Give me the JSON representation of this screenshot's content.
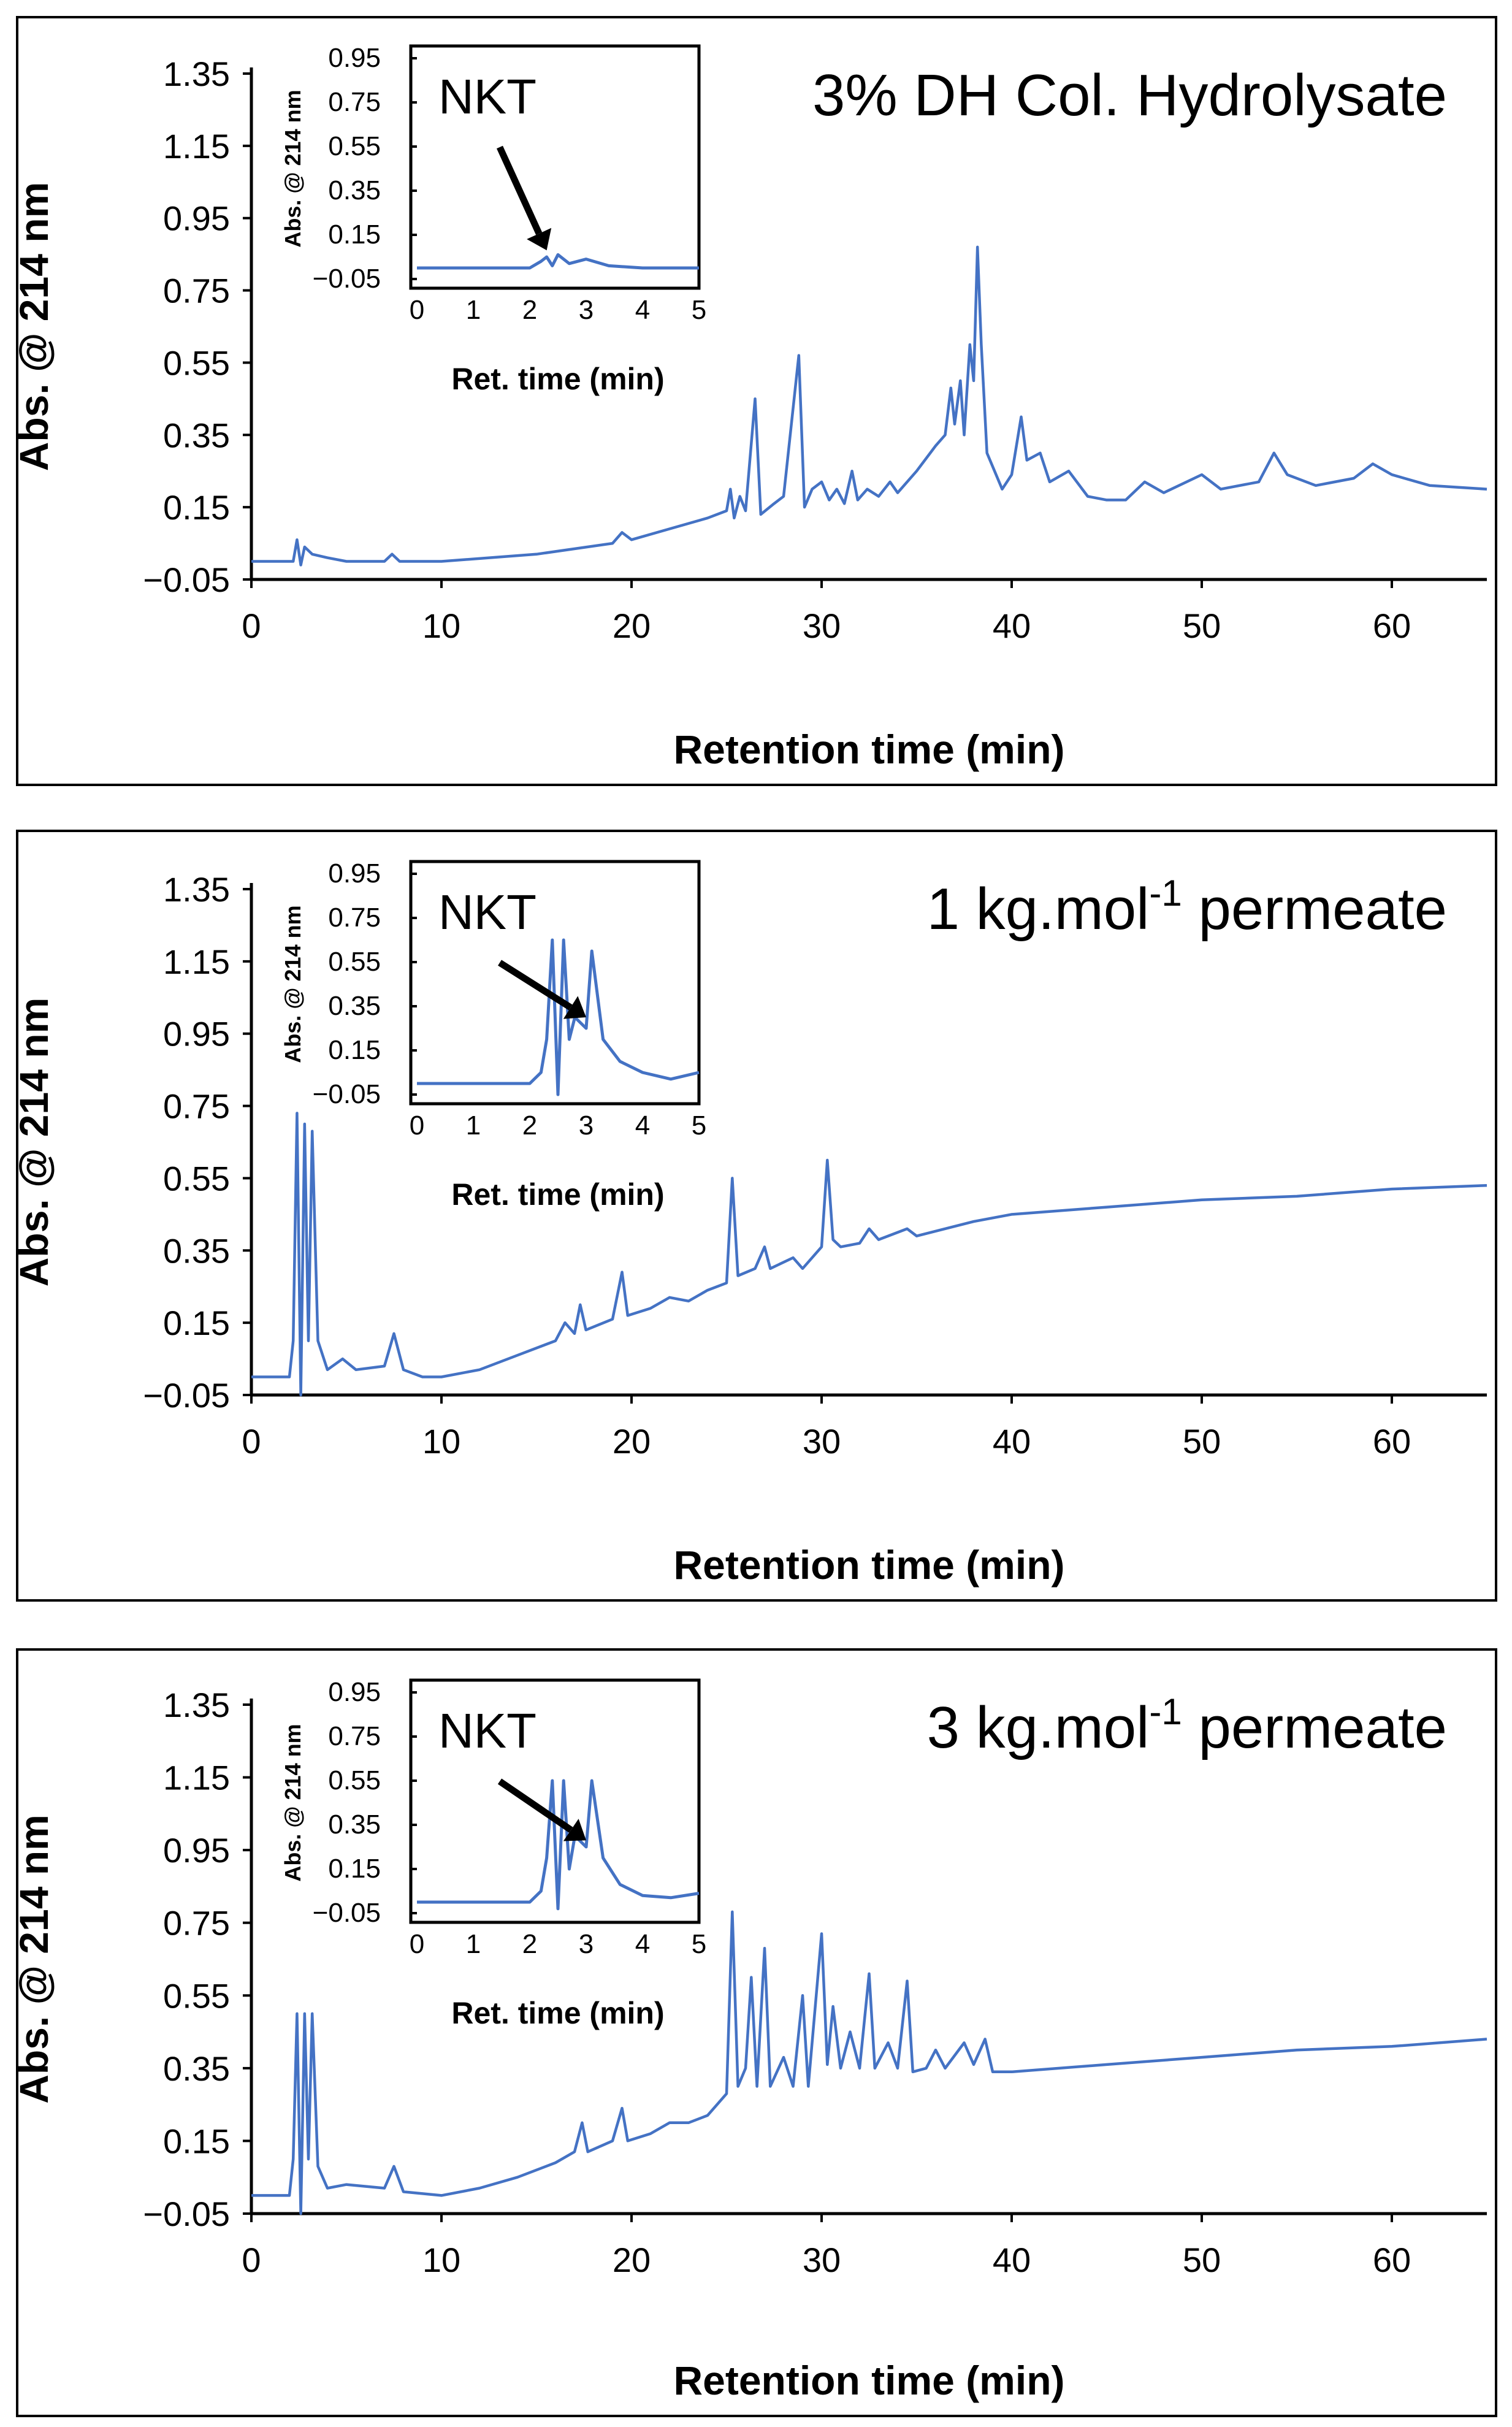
{
  "chart_data": [
    {
      "type": "line",
      "title": "3% DH Col. Hydrolysate",
      "xlabel": "Retention time (min)",
      "ylabel": "Abs. @ 214 nm",
      "xlim": [
        0,
        65
      ],
      "ylim": [
        -0.05,
        1.35
      ],
      "xticks": [
        "0",
        "10",
        "20",
        "30",
        "40",
        "50",
        "60"
      ],
      "yticks": [
        "-0.05",
        "0.15",
        "0.35",
        "0.55",
        "0.75",
        "0.95",
        "1.15",
        "1.35"
      ],
      "grid": false,
      "series": [
        {
          "values": [
            [
              0,
              0.0
            ],
            [
              2.2,
              0.0
            ],
            [
              2.4,
              0.06
            ],
            [
              2.6,
              -0.01
            ],
            [
              2.8,
              0.04
            ],
            [
              3.2,
              0.02
            ],
            [
              4,
              0.01
            ],
            [
              5,
              0.0
            ],
            [
              7,
              0.0
            ],
            [
              7.4,
              0.02
            ],
            [
              7.8,
              0.0
            ],
            [
              10,
              0.0
            ],
            [
              15,
              0.02
            ],
            [
              19,
              0.05
            ],
            [
              19.5,
              0.08
            ],
            [
              20,
              0.06
            ],
            [
              22,
              0.09
            ],
            [
              24,
              0.12
            ],
            [
              25,
              0.14
            ],
            [
              25.2,
              0.2
            ],
            [
              25.4,
              0.12
            ],
            [
              25.7,
              0.18
            ],
            [
              26,
              0.14
            ],
            [
              26.5,
              0.45
            ],
            [
              26.8,
              0.13
            ],
            [
              27.5,
              0.16
            ],
            [
              28,
              0.18
            ],
            [
              28.8,
              0.57
            ],
            [
              29.1,
              0.15
            ],
            [
              29.5,
              0.2
            ],
            [
              30,
              0.22
            ],
            [
              30.4,
              0.17
            ],
            [
              30.8,
              0.2
            ],
            [
              31.2,
              0.16
            ],
            [
              31.6,
              0.25
            ],
            [
              31.9,
              0.17
            ],
            [
              32.4,
              0.2
            ],
            [
              33,
              0.18
            ],
            [
              33.6,
              0.22
            ],
            [
              34,
              0.19
            ],
            [
              35,
              0.25
            ],
            [
              36,
              0.32
            ],
            [
              36.5,
              0.35
            ],
            [
              36.8,
              0.48
            ],
            [
              37,
              0.38
            ],
            [
              37.3,
              0.5
            ],
            [
              37.5,
              0.35
            ],
            [
              37.8,
              0.6
            ],
            [
              38,
              0.5
            ],
            [
              38.2,
              0.87
            ],
            [
              38.4,
              0.6
            ],
            [
              38.7,
              0.3
            ],
            [
              39.5,
              0.2
            ],
            [
              40,
              0.24
            ],
            [
              40.5,
              0.4
            ],
            [
              40.8,
              0.28
            ],
            [
              41.5,
              0.3
            ],
            [
              42,
              0.22
            ],
            [
              43,
              0.25
            ],
            [
              44,
              0.18
            ],
            [
              45,
              0.17
            ],
            [
              46,
              0.17
            ],
            [
              47,
              0.22
            ],
            [
              48,
              0.19
            ],
            [
              50,
              0.24
            ],
            [
              51,
              0.2
            ],
            [
              53,
              0.22
            ],
            [
              53.8,
              0.3
            ],
            [
              54.5,
              0.24
            ],
            [
              56,
              0.21
            ],
            [
              58,
              0.23
            ],
            [
              59,
              0.27
            ],
            [
              60,
              0.24
            ],
            [
              62,
              0.21
            ],
            [
              65,
              0.2
            ]
          ]
        }
      ],
      "inset": {
        "xlabel": "Ret. time (min)",
        "ylabel": "Abs. @ 214 nm",
        "xlim": [
          0,
          5
        ],
        "ylim": [
          -0.05,
          0.95
        ],
        "xticks": [
          "0",
          "1",
          "2",
          "3",
          "4",
          "5"
        ],
        "yticks": [
          "-0.05",
          "0.15",
          "0.35",
          "0.55",
          "0.75",
          "0.95"
        ],
        "annotation": "NKT",
        "arrow_to": [
          2.3,
          0.08
        ],
        "values": [
          [
            0,
            0.0
          ],
          [
            1.5,
            0.0
          ],
          [
            2.0,
            0.0
          ],
          [
            2.2,
            0.03
          ],
          [
            2.3,
            0.05
          ],
          [
            2.4,
            0.01
          ],
          [
            2.5,
            0.06
          ],
          [
            2.7,
            0.02
          ],
          [
            3.0,
            0.04
          ],
          [
            3.4,
            0.01
          ],
          [
            4,
            0.0
          ],
          [
            5,
            0.0
          ]
        ]
      }
    },
    {
      "type": "line",
      "title_parts": [
        "1 kg.mol",
        "-1",
        " permeate"
      ],
      "xlabel": "Retention time (min)",
      "ylabel": "Abs. @ 214 nm",
      "xlim": [
        0,
        65
      ],
      "ylim": [
        -0.05,
        1.35
      ],
      "xticks": [
        "0",
        "10",
        "20",
        "30",
        "40",
        "50",
        "60"
      ],
      "yticks": [
        "-0.05",
        "0.15",
        "0.35",
        "0.55",
        "0.75",
        "0.95",
        "1.15",
        "1.35"
      ],
      "grid": false,
      "series": [
        {
          "values": [
            [
              0,
              0.0
            ],
            [
              2.0,
              0.0
            ],
            [
              2.2,
              0.1
            ],
            [
              2.4,
              0.73
            ],
            [
              2.6,
              -0.05
            ],
            [
              2.8,
              0.7
            ],
            [
              3.0,
              0.1
            ],
            [
              3.2,
              0.68
            ],
            [
              3.5,
              0.1
            ],
            [
              4,
              0.02
            ],
            [
              4.8,
              0.05
            ],
            [
              5.5,
              0.02
            ],
            [
              7,
              0.03
            ],
            [
              7.5,
              0.12
            ],
            [
              8,
              0.02
            ],
            [
              9,
              0.0
            ],
            [
              10,
              0.0
            ],
            [
              12,
              0.02
            ],
            [
              14,
              0.06
            ],
            [
              16,
              0.1
            ],
            [
              16.5,
              0.15
            ],
            [
              17,
              0.12
            ],
            [
              17.3,
              0.2
            ],
            [
              17.6,
              0.13
            ],
            [
              19,
              0.16
            ],
            [
              19.5,
              0.29
            ],
            [
              19.8,
              0.17
            ],
            [
              21,
              0.19
            ],
            [
              22,
              0.22
            ],
            [
              23,
              0.21
            ],
            [
              24,
              0.24
            ],
            [
              25,
              0.26
            ],
            [
              25.3,
              0.55
            ],
            [
              25.6,
              0.28
            ],
            [
              26.5,
              0.3
            ],
            [
              27,
              0.36
            ],
            [
              27.3,
              0.3
            ],
            [
              28.5,
              0.33
            ],
            [
              29,
              0.3
            ],
            [
              30,
              0.36
            ],
            [
              30.3,
              0.6
            ],
            [
              30.6,
              0.38
            ],
            [
              31,
              0.36
            ],
            [
              32,
              0.37
            ],
            [
              32.5,
              0.41
            ],
            [
              33,
              0.38
            ],
            [
              34.5,
              0.41
            ],
            [
              35,
              0.39
            ],
            [
              38,
              0.43
            ],
            [
              40,
              0.45
            ],
            [
              45,
              0.47
            ],
            [
              50,
              0.49
            ],
            [
              55,
              0.5
            ],
            [
              60,
              0.52
            ],
            [
              65,
              0.53
            ]
          ]
        }
      ],
      "inset": {
        "xlabel": "Ret. time (min)",
        "ylabel": "Abs. @ 214 nm",
        "xlim": [
          0,
          5
        ],
        "ylim": [
          -0.05,
          0.95
        ],
        "xticks": [
          "0",
          "1",
          "2",
          "3",
          "4",
          "5"
        ],
        "yticks": [
          "-0.05",
          "0.15",
          "0.35",
          "0.55",
          "0.75",
          "0.95"
        ],
        "annotation": "NKT",
        "arrow_to": [
          3.0,
          0.3
        ],
        "values": [
          [
            0,
            0.0
          ],
          [
            1.5,
            0.0
          ],
          [
            2.0,
            0.0
          ],
          [
            2.2,
            0.05
          ],
          [
            2.3,
            0.2
          ],
          [
            2.4,
            0.65
          ],
          [
            2.5,
            -0.05
          ],
          [
            2.6,
            0.65
          ],
          [
            2.7,
            0.2
          ],
          [
            2.8,
            0.3
          ],
          [
            3.0,
            0.25
          ],
          [
            3.1,
            0.6
          ],
          [
            3.3,
            0.2
          ],
          [
            3.6,
            0.1
          ],
          [
            4,
            0.05
          ],
          [
            4.5,
            0.02
          ],
          [
            5,
            0.05
          ]
        ]
      }
    },
    {
      "type": "line",
      "title_parts": [
        "3 kg.mol",
        "-1",
        " permeate"
      ],
      "xlabel": "Retention time (min)",
      "ylabel": "Abs. @ 214 nm",
      "xlim": [
        0,
        65
      ],
      "ylim": [
        -0.05,
        1.35
      ],
      "xticks": [
        "0",
        "10",
        "20",
        "30",
        "40",
        "50",
        "60"
      ],
      "yticks": [
        "-0.05",
        "0.15",
        "0.35",
        "0.55",
        "0.75",
        "0.95",
        "1.15",
        "1.35"
      ],
      "grid": false,
      "series": [
        {
          "values": [
            [
              0,
              0.0
            ],
            [
              2.0,
              0.0
            ],
            [
              2.2,
              0.1
            ],
            [
              2.4,
              0.5
            ],
            [
              2.6,
              -0.05
            ],
            [
              2.8,
              0.5
            ],
            [
              3.0,
              0.1
            ],
            [
              3.2,
              0.5
            ],
            [
              3.5,
              0.08
            ],
            [
              4,
              0.02
            ],
            [
              5,
              0.03
            ],
            [
              7,
              0.02
            ],
            [
              7.5,
              0.08
            ],
            [
              8,
              0.01
            ],
            [
              10,
              0.0
            ],
            [
              12,
              0.02
            ],
            [
              14,
              0.05
            ],
            [
              16,
              0.09
            ],
            [
              17,
              0.12
            ],
            [
              17.4,
              0.2
            ],
            [
              17.7,
              0.12
            ],
            [
              19,
              0.15
            ],
            [
              19.5,
              0.24
            ],
            [
              19.8,
              0.15
            ],
            [
              21,
              0.17
            ],
            [
              22,
              0.2
            ],
            [
              23,
              0.2
            ],
            [
              24,
              0.22
            ],
            [
              25,
              0.28
            ],
            [
              25.3,
              0.78
            ],
            [
              25.6,
              0.3
            ],
            [
              26,
              0.35
            ],
            [
              26.3,
              0.6
            ],
            [
              26.6,
              0.3
            ],
            [
              27,
              0.68
            ],
            [
              27.3,
              0.3
            ],
            [
              28,
              0.38
            ],
            [
              28.5,
              0.3
            ],
            [
              29,
              0.55
            ],
            [
              29.3,
              0.3
            ],
            [
              30,
              0.72
            ],
            [
              30.3,
              0.36
            ],
            [
              30.6,
              0.52
            ],
            [
              31,
              0.35
            ],
            [
              31.5,
              0.45
            ],
            [
              32,
              0.35
            ],
            [
              32.5,
              0.61
            ],
            [
              32.8,
              0.35
            ],
            [
              33.5,
              0.42
            ],
            [
              34,
              0.35
            ],
            [
              34.5,
              0.59
            ],
            [
              34.8,
              0.34
            ],
            [
              35.5,
              0.35
            ],
            [
              36,
              0.4
            ],
            [
              36.5,
              0.35
            ],
            [
              37.5,
              0.42
            ],
            [
              38,
              0.36
            ],
            [
              38.6,
              0.43
            ],
            [
              39,
              0.34
            ],
            [
              40,
              0.34
            ],
            [
              45,
              0.36
            ],
            [
              50,
              0.38
            ],
            [
              55,
              0.4
            ],
            [
              60,
              0.41
            ],
            [
              65,
              0.43
            ]
          ]
        }
      ],
      "inset": {
        "xlabel": "Ret. time (min)",
        "ylabel": "Abs. @ 214 nm",
        "xlim": [
          0,
          5
        ],
        "ylim": [
          -0.05,
          0.95
        ],
        "xticks": [
          "0",
          "1",
          "2",
          "3",
          "4",
          "5"
        ],
        "yticks": [
          "-0.05",
          "0.15",
          "0.35",
          "0.55",
          "0.75",
          "0.95"
        ],
        "annotation": "NKT",
        "arrow_to": [
          3.0,
          0.28
        ],
        "values": [
          [
            0,
            0.0
          ],
          [
            1.5,
            0.0
          ],
          [
            2.0,
            0.0
          ],
          [
            2.2,
            0.05
          ],
          [
            2.3,
            0.2
          ],
          [
            2.4,
            0.55
          ],
          [
            2.5,
            -0.03
          ],
          [
            2.6,
            0.55
          ],
          [
            2.7,
            0.15
          ],
          [
            2.8,
            0.3
          ],
          [
            3.0,
            0.25
          ],
          [
            3.1,
            0.55
          ],
          [
            3.3,
            0.2
          ],
          [
            3.6,
            0.08
          ],
          [
            4,
            0.03
          ],
          [
            4.5,
            0.02
          ],
          [
            5,
            0.04
          ]
        ]
      }
    }
  ]
}
